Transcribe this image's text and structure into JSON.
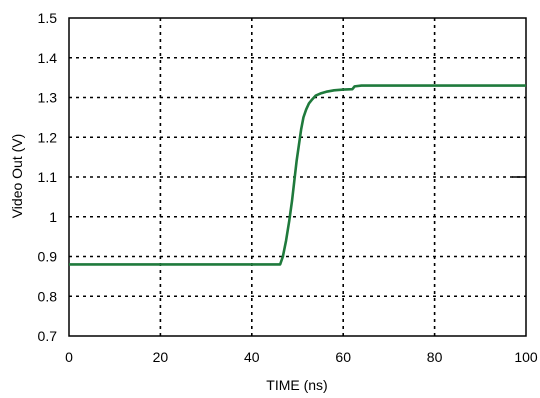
{
  "chart_data": {
    "type": "line",
    "title": "",
    "xlabel": "TIME (ns)",
    "ylabel": "Video  Out (V)",
    "xlim": [
      0,
      100
    ],
    "ylim": [
      0.7,
      1.5
    ],
    "x_ticks": [
      0,
      20,
      40,
      60,
      80,
      100
    ],
    "x_tick_labels": [
      "0",
      "20",
      "40",
      "60",
      "80",
      "100"
    ],
    "y_ticks": [
      0.7,
      0.8,
      0.9,
      1.0,
      1.1,
      1.2,
      1.3,
      1.4,
      1.5
    ],
    "y_tick_labels": [
      "0.7",
      "0.8",
      "0.9",
      "1",
      "1.1",
      "1.2",
      "1.3",
      "1.4",
      "1.5"
    ],
    "grid": true,
    "grid_style": "dotted",
    "legend": "none",
    "colors": {
      "series": "#1f7a3c",
      "grid": "#000000",
      "frame": "#000000"
    },
    "series": [
      {
        "x": [
          0,
          46.2,
          46.8,
          47.5,
          48.2,
          48.8,
          49.3,
          49.8,
          50.3,
          50.8,
          51.3,
          51.9,
          52.5,
          53.2,
          54,
          55,
          56.5,
          58,
          60,
          62,
          62.5,
          64,
          70,
          80,
          90,
          100
        ],
        "y": [
          0.88,
          0.88,
          0.9,
          0.94,
          0.99,
          1.04,
          1.09,
          1.14,
          1.18,
          1.22,
          1.25,
          1.27,
          1.285,
          1.295,
          1.305,
          1.31,
          1.315,
          1.318,
          1.32,
          1.321,
          1.328,
          1.33,
          1.33,
          1.33,
          1.33,
          1.33
        ]
      }
    ]
  }
}
